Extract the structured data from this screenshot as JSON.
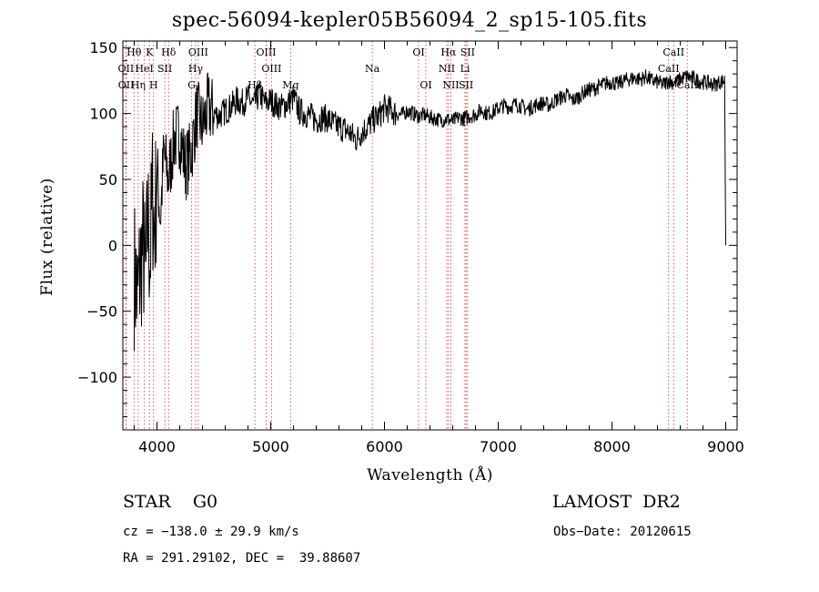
{
  "chart_data": {
    "type": "line",
    "title": "spec-56094-kepler05B56094_2_sp15-105.fits",
    "xlabel": "Wavelength (Å)",
    "ylabel": "Flux (relative)",
    "xlim": [
      3700,
      9100
    ],
    "ylim": [
      -140,
      155
    ],
    "xticks": [
      4000,
      5000,
      6000,
      7000,
      8000,
      9000
    ],
    "yticks": [
      -100,
      -50,
      0,
      50,
      100,
      150
    ],
    "x_tick_labels": [
      "4000",
      "5000",
      "6000",
      "7000",
      "8000",
      "9000"
    ],
    "y_tick_labels": [
      "−100",
      "−50",
      "0",
      "50",
      "100",
      "150"
    ],
    "grid": false,
    "series": [
      {
        "x": [
          3800,
          3830,
          3860,
          3880,
          3900,
          3920,
          3940,
          3960,
          3980,
          4000,
          4030,
          4060,
          4100,
          4150,
          4200,
          4250,
          4300,
          4350,
          4400,
          4450,
          4500,
          4550,
          4600,
          4650,
          4700,
          4750,
          4800,
          4850,
          4900,
          4950,
          5000,
          5050,
          5100,
          5150,
          5200,
          5250,
          5300,
          5350,
          5400,
          5450,
          5500,
          5550,
          5600,
          5650,
          5700,
          5750,
          5800,
          5850,
          5900,
          5950,
          6000,
          6050,
          6100,
          6150,
          6200,
          6250,
          6300,
          6350,
          6400,
          6450,
          6500,
          6550,
          6600,
          6650,
          6700,
          6750,
          6800,
          6850,
          6900,
          6950,
          7000,
          7050,
          7100,
          7150,
          7200,
          7250,
          7300,
          7350,
          7400,
          7450,
          7500,
          7550,
          7600,
          7650,
          7700,
          7750,
          7800,
          7850,
          7900,
          7950,
          8000,
          8050,
          8100,
          8150,
          8200,
          8250,
          8300,
          8350,
          8400,
          8450,
          8500,
          8550,
          8600,
          8650,
          8700,
          8750,
          8800,
          8850,
          8900,
          8950,
          8990,
          9000
        ],
        "y": [
          -20,
          -40,
          -10,
          0,
          -30,
          20,
          -10,
          40,
          10,
          60,
          20,
          70,
          50,
          80,
          85,
          60,
          70,
          100,
          90,
          105,
          100,
          98,
          102,
          105,
          110,
          108,
          112,
          106,
          115,
          108,
          110,
          106,
          105,
          108,
          112,
          102,
          100,
          98,
          95,
          97,
          96,
          92,
          90,
          88,
          85,
          80,
          86,
          90,
          95,
          98,
          104,
          103,
          100,
          99,
          102,
          100,
          98,
          99,
          97,
          96,
          95,
          96,
          94,
          97,
          96,
          98,
          99,
          103,
          100,
          101,
          104,
          106,
          105,
          107,
          106,
          103,
          105,
          107,
          108,
          106,
          110,
          112,
          114,
          110,
          112,
          116,
          118,
          119,
          121,
          123,
          124,
          122,
          125,
          126,
          127,
          126,
          128,
          125,
          124,
          122,
          125,
          123,
          126,
          128,
          127,
          125,
          124,
          123,
          122,
          124,
          125,
          0
        ]
      }
    ],
    "line_marks": [
      {
        "label": "Hθ",
        "x": 3798
      },
      {
        "label": "K",
        "x": 3934
      },
      {
        "label": "Hδ",
        "x": 4102
      },
      {
        "label": "OIII",
        "x": 4363
      },
      {
        "label": "OIII",
        "x": 4960
      },
      {
        "label": "OI",
        "x": 6300
      },
      {
        "label": "Hα",
        "x": 6563
      },
      {
        "label": "SII",
        "x": 6731
      },
      {
        "label": "CaII",
        "x": 8542
      },
      {
        "label": "OII",
        "x": 3727
      },
      {
        "label": "HeI",
        "x": 3889
      },
      {
        "label": "SII",
        "x": 4069
      },
      {
        "label": "Hγ",
        "x": 4340
      },
      {
        "label": "OIII",
        "x": 5007
      },
      {
        "label": "Na",
        "x": 5893
      },
      {
        "label": "NII",
        "x": 6548
      },
      {
        "label": "Li",
        "x": 6708
      },
      {
        "label": "CaII",
        "x": 8498
      },
      {
        "label": "OII",
        "x": 3729
      },
      {
        "label": "Hη",
        "x": 3835
      },
      {
        "label": "H",
        "x": 3970
      },
      {
        "label": "G",
        "x": 4305
      },
      {
        "label": "Hβ",
        "x": 4861
      },
      {
        "label": "Mg",
        "x": 5175
      },
      {
        "label": "OI",
        "x": 6364
      },
      {
        "label": "NII",
        "x": 6584
      },
      {
        "label": "SII",
        "x": 6717
      },
      {
        "label": "CaII",
        "x": 8662
      }
    ]
  },
  "info": {
    "object_class": "STAR    G0",
    "survey": "LAMOST  DR2",
    "redshift": "cz = −138.0 ± 29.9 km/s",
    "obs_date": "Obs−Date: 20120615",
    "coords": "RA = 291.29102, DEC =  39.88607"
  }
}
